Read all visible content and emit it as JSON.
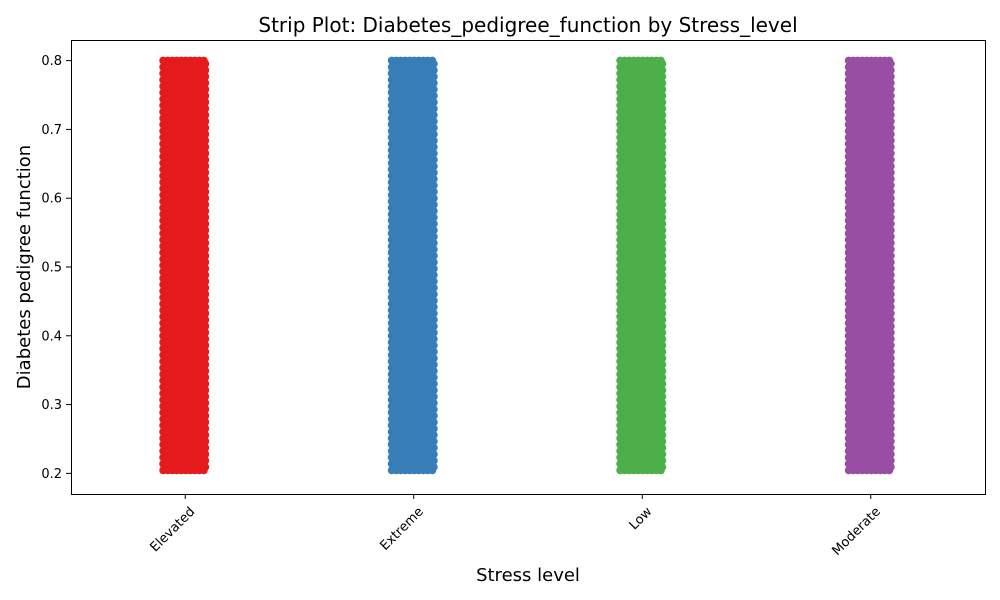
{
  "chart_data": {
    "type": "scatter",
    "subtype": "strip",
    "title": "Strip Plot: Diabetes_pedigree_function by Stress_level",
    "xlabel": "Stress level",
    "ylabel": "Diabetes pedigree function",
    "categories": [
      "Elevated",
      "Extreme",
      "Low",
      "Moderate"
    ],
    "colors": [
      "#e41a1c",
      "#377eb8",
      "#4daf4a",
      "#984ea3"
    ],
    "series": [
      {
        "category": "Elevated",
        "y_min": 0.2,
        "y_max": 0.8
      },
      {
        "category": "Extreme",
        "y_min": 0.2,
        "y_max": 0.8
      },
      {
        "category": "Low",
        "y_min": 0.2,
        "y_max": 0.8
      },
      {
        "category": "Moderate",
        "y_min": 0.2,
        "y_max": 0.8
      }
    ],
    "yticks": [
      "0.2",
      "0.3",
      "0.4",
      "0.5",
      "0.6",
      "0.7",
      "0.8"
    ],
    "ylim": [
      0.17,
      0.83
    ],
    "grid": false,
    "xtick_rotation": 45
  }
}
